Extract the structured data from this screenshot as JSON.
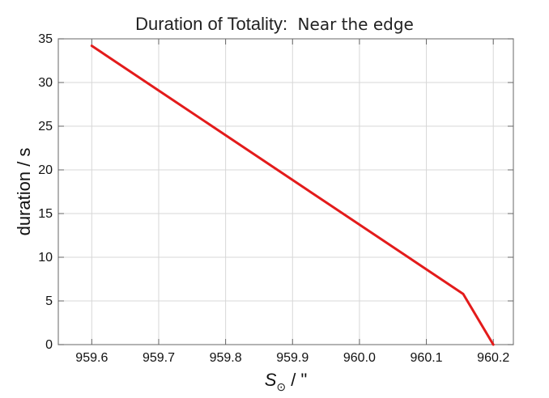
{
  "chart_data": {
    "type": "line",
    "title": "Duration of Totality:",
    "subtitle": "Near the edge",
    "xlabel": {
      "symbol": "S",
      "subscript": "⊙",
      "unit": " / \""
    },
    "ylabel": "duration / s",
    "xlim": [
      959.55,
      960.23
    ],
    "ylim": [
      0,
      35
    ],
    "xticks": [
      959.6,
      959.7,
      959.8,
      959.9,
      960.0,
      960.1,
      960.2
    ],
    "xtick_labels": [
      "959.6",
      "959.7",
      "959.8",
      "959.9",
      "960.0",
      "960.1",
      "960.2"
    ],
    "yticks": [
      0,
      5,
      10,
      15,
      20,
      25,
      30,
      35
    ],
    "ytick_labels": [
      "0",
      "5",
      "10",
      "15",
      "20",
      "25",
      "30",
      "35"
    ],
    "grid": true,
    "legend": "none",
    "series": [
      {
        "color": "#e31b1b",
        "points": [
          {
            "x": 959.6,
            "y": 34.2
          },
          {
            "x": 960.155,
            "y": 5.8
          },
          {
            "x": 960.2,
            "y": 0
          }
        ]
      }
    ]
  }
}
